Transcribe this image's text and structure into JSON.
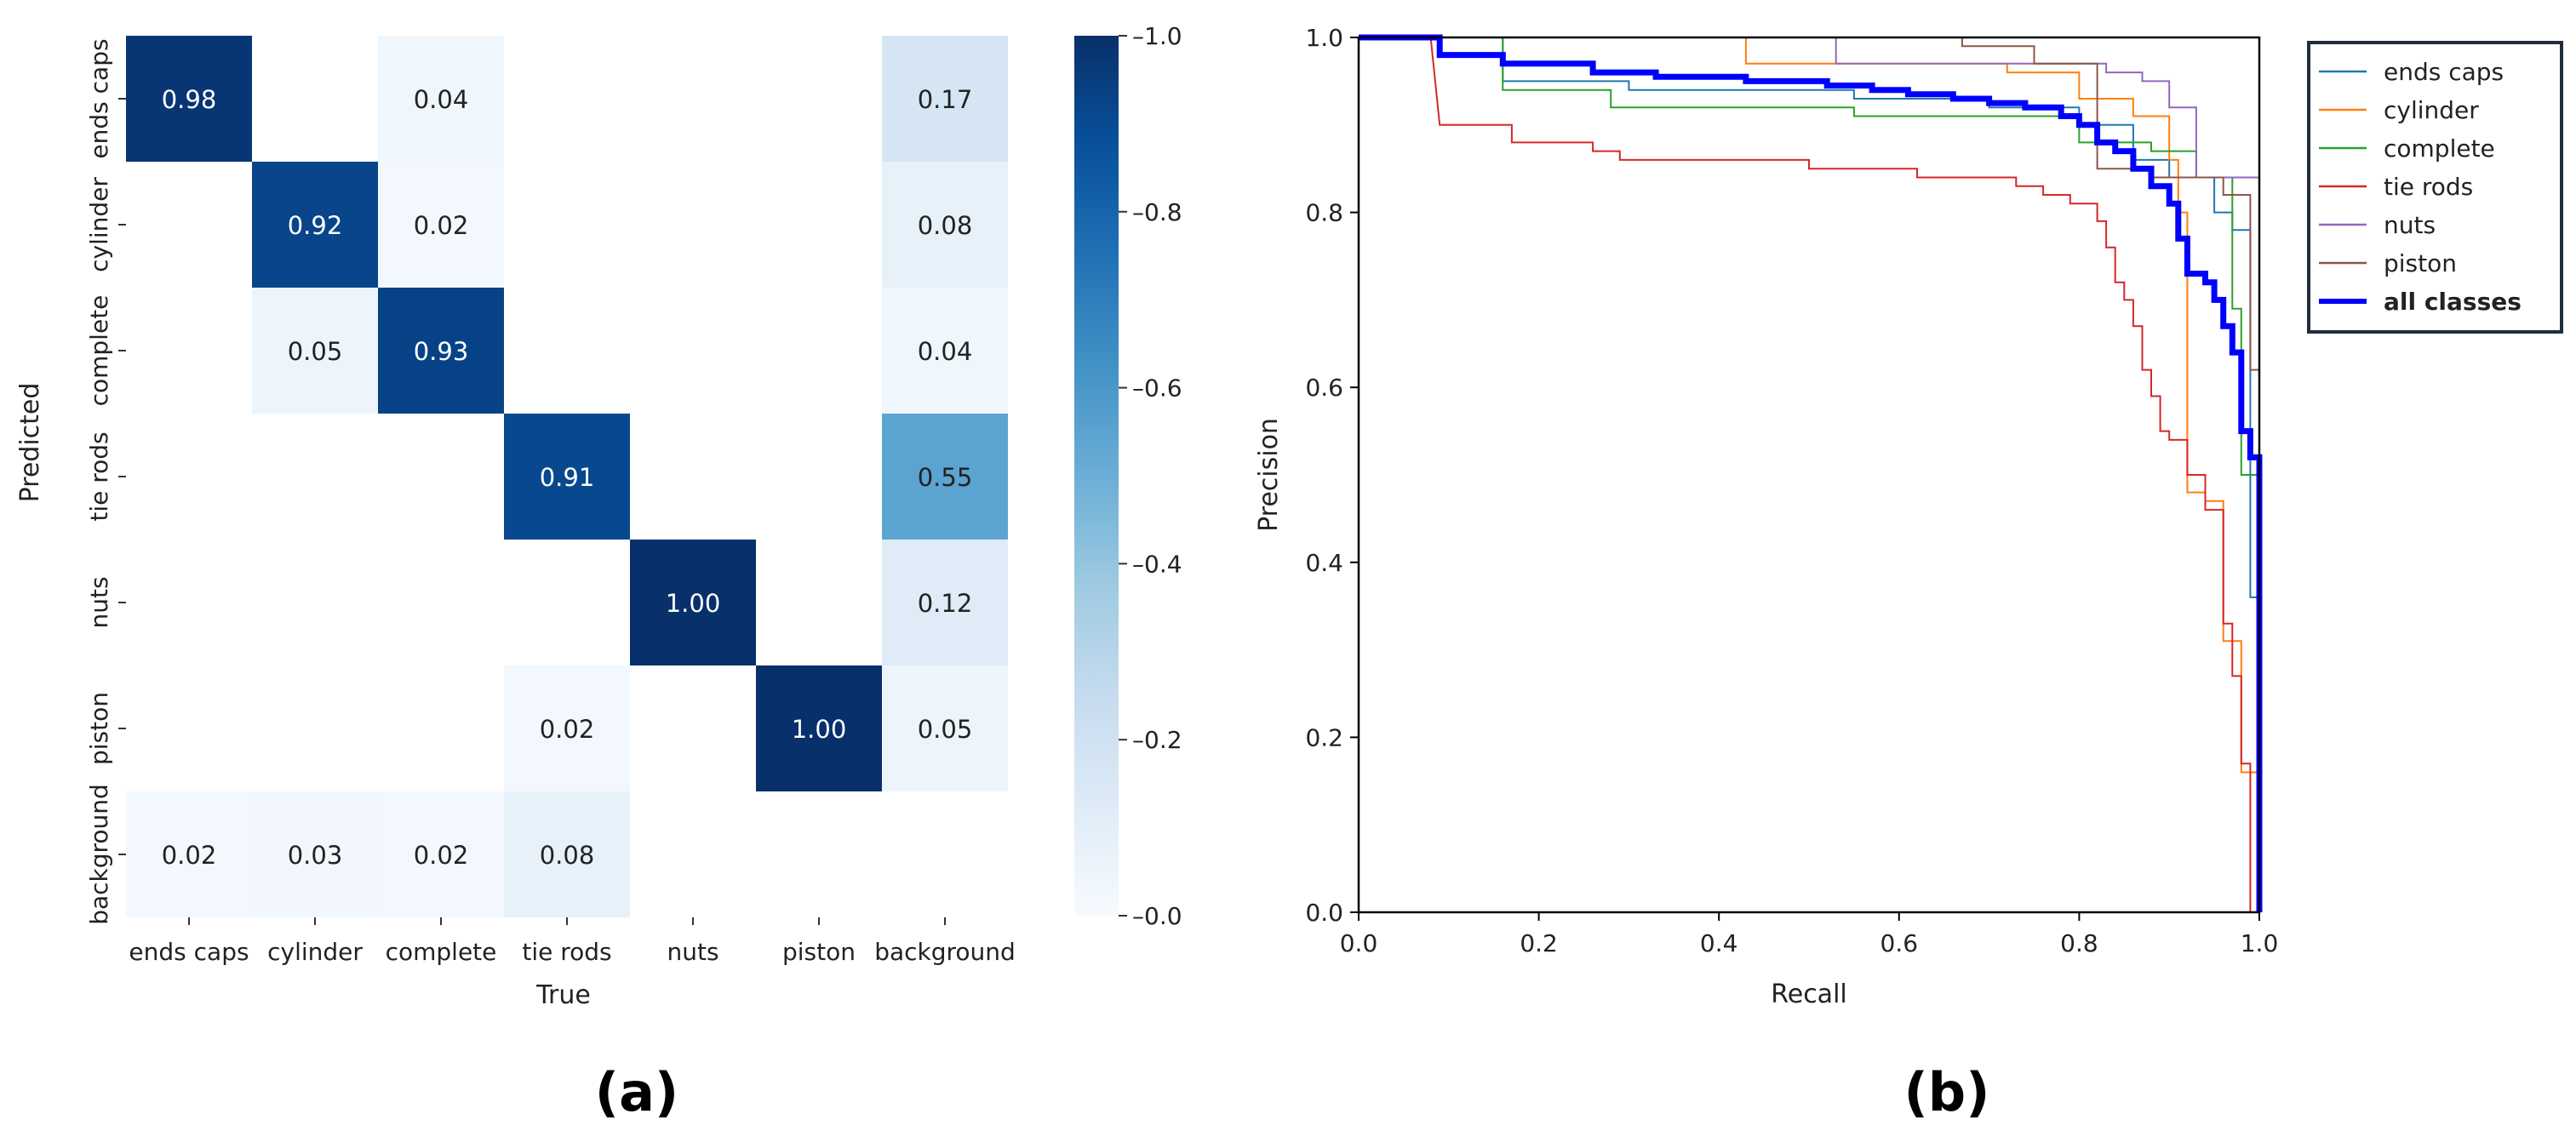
{
  "panel_labels": {
    "a": "(a)",
    "b": "(b)"
  },
  "colorbar": {
    "ticks": [
      {
        "value": 1.0,
        "label": "1.0"
      },
      {
        "value": 0.8,
        "label": "0.8"
      },
      {
        "value": 0.6,
        "label": "0.6"
      },
      {
        "value": 0.4,
        "label": "0.4"
      },
      {
        "value": 0.2,
        "label": "0.2"
      },
      {
        "value": 0.0,
        "label": "0.0"
      }
    ],
    "color_low": "#f7fbff",
    "color_high": "#08306b"
  },
  "chart_data": [
    {
      "type": "heatmap",
      "title": "",
      "xlabel": "True",
      "ylabel": "Predicted",
      "x_categories": [
        "ends caps",
        "cylinder",
        "complete",
        "tie rods",
        "nuts",
        "piston",
        "background"
      ],
      "y_categories": [
        "ends caps",
        "cylinder",
        "complete",
        "tie rods",
        "nuts",
        "piston",
        "background"
      ],
      "value_range": [
        0.0,
        1.0
      ],
      "values": [
        [
          0.98,
          null,
          0.04,
          null,
          null,
          null,
          0.17
        ],
        [
          null,
          0.92,
          0.02,
          null,
          null,
          null,
          0.08
        ],
        [
          null,
          0.05,
          0.93,
          null,
          null,
          null,
          0.04
        ],
        [
          null,
          null,
          null,
          0.91,
          null,
          null,
          0.55
        ],
        [
          null,
          null,
          null,
          null,
          1.0,
          null,
          0.12
        ],
        [
          null,
          null,
          null,
          0.02,
          null,
          1.0,
          0.05
        ],
        [
          0.02,
          0.03,
          0.02,
          0.08,
          null,
          null,
          null
        ]
      ]
    },
    {
      "type": "line",
      "title": "",
      "xlabel": "Recall",
      "ylabel": "Precision",
      "xlim": [
        0.0,
        1.0
      ],
      "ylim": [
        0.0,
        1.0
      ],
      "x_ticks": [
        "0.0",
        "0.2",
        "0.4",
        "0.6",
        "0.8",
        "1.0"
      ],
      "y_ticks": [
        "0.0",
        "0.2",
        "0.4",
        "0.6",
        "0.8",
        "1.0"
      ],
      "legend_position": "outside-top-right",
      "series": [
        {
          "name": "ends caps",
          "color": "#1f77b4",
          "width": 2,
          "points": [
            [
              0,
              1
            ],
            [
              0.16,
              1
            ],
            [
              0.16,
              0.95
            ],
            [
              0.3,
              0.95
            ],
            [
              0.3,
              0.94
            ],
            [
              0.55,
              0.94
            ],
            [
              0.55,
              0.93
            ],
            [
              0.7,
              0.93
            ],
            [
              0.7,
              0.92
            ],
            [
              0.8,
              0.92
            ],
            [
              0.8,
              0.9
            ],
            [
              0.86,
              0.9
            ],
            [
              0.86,
              0.86
            ],
            [
              0.9,
              0.86
            ],
            [
              0.9,
              0.84
            ],
            [
              0.95,
              0.84
            ],
            [
              0.95,
              0.8
            ],
            [
              0.97,
              0.8
            ],
            [
              0.97,
              0.78
            ],
            [
              0.99,
              0.78
            ],
            [
              0.99,
              0.36
            ],
            [
              1.0,
              0.36
            ],
            [
              1.0,
              0
            ]
          ]
        },
        {
          "name": "cylinder",
          "color": "#ff7f0e",
          "width": 2,
          "points": [
            [
              0,
              1
            ],
            [
              0.43,
              1
            ],
            [
              0.43,
              0.97
            ],
            [
              0.72,
              0.97
            ],
            [
              0.72,
              0.96
            ],
            [
              0.8,
              0.96
            ],
            [
              0.8,
              0.93
            ],
            [
              0.86,
              0.93
            ],
            [
              0.86,
              0.91
            ],
            [
              0.9,
              0.91
            ],
            [
              0.9,
              0.86
            ],
            [
              0.91,
              0.86
            ],
            [
              0.91,
              0.8
            ],
            [
              0.92,
              0.8
            ],
            [
              0.92,
              0.48
            ],
            [
              0.94,
              0.48
            ],
            [
              0.94,
              0.47
            ],
            [
              0.96,
              0.47
            ],
            [
              0.96,
              0.31
            ],
            [
              0.98,
              0.31
            ],
            [
              0.98,
              0.16
            ],
            [
              1.0,
              0.16
            ],
            [
              1.0,
              0
            ]
          ]
        },
        {
          "name": "complete",
          "color": "#2ca02c",
          "width": 2,
          "points": [
            [
              0,
              1
            ],
            [
              0.16,
              1
            ],
            [
              0.16,
              0.94
            ],
            [
              0.28,
              0.94
            ],
            [
              0.28,
              0.92
            ],
            [
              0.55,
              0.92
            ],
            [
              0.55,
              0.91
            ],
            [
              0.8,
              0.91
            ],
            [
              0.8,
              0.88
            ],
            [
              0.88,
              0.88
            ],
            [
              0.88,
              0.87
            ],
            [
              0.93,
              0.87
            ],
            [
              0.93,
              0.84
            ],
            [
              0.97,
              0.84
            ],
            [
              0.97,
              0.69
            ],
            [
              0.98,
              0.69
            ],
            [
              0.98,
              0.5
            ],
            [
              1.0,
              0.5
            ],
            [
              1.0,
              0
            ]
          ]
        },
        {
          "name": "tie rods",
          "color": "#d62728",
          "width": 2,
          "points": [
            [
              0,
              1
            ],
            [
              0.08,
              1
            ],
            [
              0.09,
              0.9
            ],
            [
              0.17,
              0.9
            ],
            [
              0.17,
              0.88
            ],
            [
              0.26,
              0.88
            ],
            [
              0.26,
              0.87
            ],
            [
              0.29,
              0.87
            ],
            [
              0.29,
              0.86
            ],
            [
              0.5,
              0.86
            ],
            [
              0.5,
              0.85
            ],
            [
              0.62,
              0.85
            ],
            [
              0.62,
              0.84
            ],
            [
              0.73,
              0.84
            ],
            [
              0.73,
              0.83
            ],
            [
              0.76,
              0.83
            ],
            [
              0.76,
              0.82
            ],
            [
              0.79,
              0.82
            ],
            [
              0.79,
              0.81
            ],
            [
              0.82,
              0.81
            ],
            [
              0.82,
              0.79
            ],
            [
              0.83,
              0.79
            ],
            [
              0.83,
              0.76
            ],
            [
              0.84,
              0.76
            ],
            [
              0.84,
              0.72
            ],
            [
              0.85,
              0.72
            ],
            [
              0.85,
              0.7
            ],
            [
              0.86,
              0.7
            ],
            [
              0.86,
              0.67
            ],
            [
              0.87,
              0.67
            ],
            [
              0.87,
              0.62
            ],
            [
              0.88,
              0.62
            ],
            [
              0.88,
              0.59
            ],
            [
              0.89,
              0.59
            ],
            [
              0.89,
              0.55
            ],
            [
              0.9,
              0.55
            ],
            [
              0.9,
              0.54
            ],
            [
              0.92,
              0.54
            ],
            [
              0.92,
              0.5
            ],
            [
              0.94,
              0.5
            ],
            [
              0.94,
              0.46
            ],
            [
              0.96,
              0.46
            ],
            [
              0.96,
              0.33
            ],
            [
              0.97,
              0.33
            ],
            [
              0.97,
              0.27
            ],
            [
              0.98,
              0.27
            ],
            [
              0.98,
              0.17
            ],
            [
              0.99,
              0.17
            ],
            [
              0.99,
              0
            ]
          ]
        },
        {
          "name": "nuts",
          "color": "#9467bd",
          "width": 2,
          "points": [
            [
              0,
              1
            ],
            [
              0.53,
              1
            ],
            [
              0.53,
              0.97
            ],
            [
              0.83,
              0.97
            ],
            [
              0.83,
              0.96
            ],
            [
              0.87,
              0.96
            ],
            [
              0.87,
              0.95
            ],
            [
              0.9,
              0.95
            ],
            [
              0.9,
              0.92
            ],
            [
              0.93,
              0.92
            ],
            [
              0.93,
              0.84
            ],
            [
              1.0,
              0.84
            ],
            [
              1.0,
              0
            ]
          ]
        },
        {
          "name": "piston",
          "color": "#8c564b",
          "width": 2,
          "points": [
            [
              0,
              1
            ],
            [
              0.67,
              1
            ],
            [
              0.67,
              0.99
            ],
            [
              0.75,
              0.99
            ],
            [
              0.75,
              0.97
            ],
            [
              0.82,
              0.97
            ],
            [
              0.82,
              0.85
            ],
            [
              0.88,
              0.85
            ],
            [
              0.88,
              0.84
            ],
            [
              0.96,
              0.84
            ],
            [
              0.96,
              0.82
            ],
            [
              0.99,
              0.82
            ],
            [
              0.99,
              0.62
            ],
            [
              1.0,
              0.62
            ],
            [
              1.0,
              0
            ]
          ]
        },
        {
          "name": "all classes",
          "color": "#0000ff",
          "width": 7,
          "points": [
            [
              0,
              1
            ],
            [
              0.09,
              1
            ],
            [
              0.09,
              0.98
            ],
            [
              0.16,
              0.98
            ],
            [
              0.16,
              0.97
            ],
            [
              0.26,
              0.97
            ],
            [
              0.26,
              0.96
            ],
            [
              0.33,
              0.96
            ],
            [
              0.33,
              0.955
            ],
            [
              0.43,
              0.955
            ],
            [
              0.43,
              0.95
            ],
            [
              0.52,
              0.95
            ],
            [
              0.52,
              0.945
            ],
            [
              0.57,
              0.945
            ],
            [
              0.57,
              0.94
            ],
            [
              0.61,
              0.94
            ],
            [
              0.61,
              0.935
            ],
            [
              0.66,
              0.935
            ],
            [
              0.66,
              0.93
            ],
            [
              0.7,
              0.93
            ],
            [
              0.7,
              0.925
            ],
            [
              0.74,
              0.925
            ],
            [
              0.74,
              0.92
            ],
            [
              0.78,
              0.92
            ],
            [
              0.78,
              0.91
            ],
            [
              0.8,
              0.91
            ],
            [
              0.8,
              0.9
            ],
            [
              0.82,
              0.9
            ],
            [
              0.82,
              0.88
            ],
            [
              0.84,
              0.88
            ],
            [
              0.84,
              0.87
            ],
            [
              0.86,
              0.87
            ],
            [
              0.86,
              0.85
            ],
            [
              0.88,
              0.85
            ],
            [
              0.88,
              0.83
            ],
            [
              0.9,
              0.83
            ],
            [
              0.9,
              0.81
            ],
            [
              0.91,
              0.81
            ],
            [
              0.91,
              0.77
            ],
            [
              0.92,
              0.77
            ],
            [
              0.92,
              0.73
            ],
            [
              0.94,
              0.73
            ],
            [
              0.94,
              0.72
            ],
            [
              0.95,
              0.72
            ],
            [
              0.95,
              0.7
            ],
            [
              0.96,
              0.7
            ],
            [
              0.96,
              0.67
            ],
            [
              0.97,
              0.67
            ],
            [
              0.97,
              0.64
            ],
            [
              0.98,
              0.64
            ],
            [
              0.98,
              0.55
            ],
            [
              0.99,
              0.55
            ],
            [
              0.99,
              0.52
            ],
            [
              1.0,
              0.52
            ],
            [
              1.0,
              0
            ]
          ]
        }
      ]
    }
  ]
}
